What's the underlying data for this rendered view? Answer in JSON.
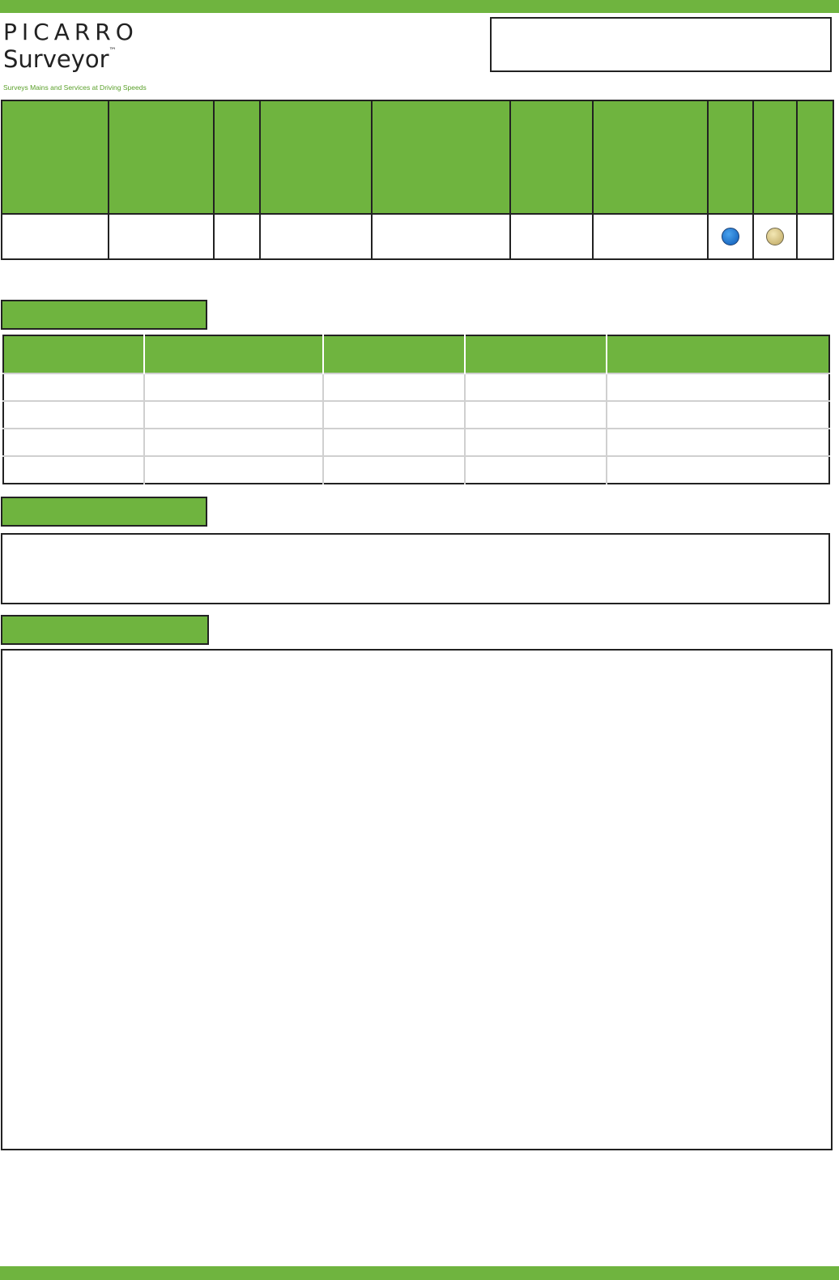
{
  "brand": {
    "company": "PICARRO",
    "product": "Surveyor",
    "trademark": "™",
    "tagline": "Surveys Mains and Services at Driving Speeds",
    "accent_color": "#6fb43f"
  },
  "survey_table": {
    "indicators": [
      {
        "name": "blue-status-dot",
        "color": "#1f6fc6"
      },
      {
        "name": "tan-status-dot",
        "color": "#cdb978"
      }
    ]
  }
}
